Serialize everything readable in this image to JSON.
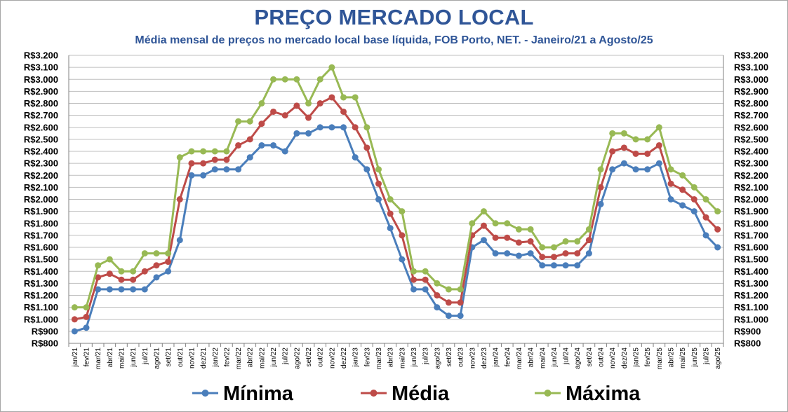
{
  "chart_data": {
    "type": "line",
    "title": "PREÇO MERCADO LOCAL",
    "subtitle": "Média mensal de preços no mercado local base líquida, FOB Porto, NET. - Janeiro/21 a Agosto/25",
    "ylim": [
      800,
      3200
    ],
    "ytick_step": 100,
    "ytick_labels": [
      "R$800",
      "R$900",
      "R$1.000",
      "R$1.100",
      "R$1.200",
      "R$1.300",
      "R$1.400",
      "R$1.500",
      "R$1.600",
      "R$1.700",
      "R$1.800",
      "R$1.900",
      "R$2.000",
      "R$2.100",
      "R$2.200",
      "R$2.300",
      "R$2.400",
      "R$2.500",
      "R$2.600",
      "R$2.700",
      "R$2.800",
      "R$2.900",
      "R$3.000",
      "R$3.100",
      "R$3.200"
    ],
    "grid": true,
    "legend_position": "bottom",
    "categories": [
      "jan/21",
      "fev/21",
      "mar/21",
      "abr/21",
      "mai/21",
      "jun/21",
      "jul/21",
      "ago/21",
      "set/21",
      "out/21",
      "nov/21",
      "dez/21",
      "jan/22",
      "fev/22",
      "mar/22",
      "abr/22",
      "mai/22",
      "jun/22",
      "jul/22",
      "ago/22",
      "set/22",
      "out/22",
      "nov/22",
      "dez/22",
      "jan/23",
      "fev/23",
      "mar/23",
      "abr/23",
      "mai/23",
      "jun/23",
      "jul/23",
      "ago/23",
      "set/23",
      "out/23",
      "nov/23",
      "dez/23",
      "jan/24",
      "fev/24",
      "mar/24",
      "abr/24",
      "mai/24",
      "jun/24",
      "jul/24",
      "ago/24",
      "set/24",
      "out/24",
      "nov/24",
      "dez/24",
      "jan/25",
      "fev/25",
      "mar/25",
      "abr/25",
      "mai/25",
      "jun/25",
      "jul/25",
      "ago/25"
    ],
    "series": [
      {
        "name": "Mínima",
        "color": "#4a7ebb",
        "values": [
          900,
          930,
          1250,
          1250,
          1250,
          1250,
          1250,
          1350,
          1400,
          1660,
          2200,
          2200,
          2250,
          2250,
          2250,
          2350,
          2450,
          2450,
          2400,
          2550,
          2550,
          2600,
          2600,
          2600,
          2350,
          2250,
          2000,
          1760,
          1500,
          1250,
          1250,
          1100,
          1030,
          1030,
          1600,
          1660,
          1550,
          1550,
          1530,
          1550,
          1450,
          1450,
          1450,
          1450,
          1550,
          1960,
          2250,
          2300,
          2250,
          2250,
          2300,
          2000,
          1950,
          1900,
          1700,
          1600
        ]
      },
      {
        "name": "Média",
        "color": "#be4b48",
        "values": [
          1000,
          1020,
          1350,
          1380,
          1330,
          1330,
          1400,
          1450,
          1480,
          2000,
          2300,
          2300,
          2330,
          2330,
          2450,
          2500,
          2630,
          2730,
          2700,
          2780,
          2680,
          2800,
          2850,
          2730,
          2600,
          2430,
          2130,
          1880,
          1700,
          1330,
          1330,
          1200,
          1140,
          1140,
          1700,
          1780,
          1680,
          1680,
          1640,
          1650,
          1520,
          1520,
          1550,
          1550,
          1660,
          2100,
          2400,
          2430,
          2380,
          2380,
          2450,
          2130,
          2080,
          2000,
          1850,
          1750
        ]
      },
      {
        "name": "Máxima",
        "color": "#98b954",
        "values": [
          1100,
          1100,
          1450,
          1500,
          1400,
          1400,
          1550,
          1550,
          1550,
          2350,
          2400,
          2400,
          2400,
          2400,
          2650,
          2650,
          2800,
          3000,
          3000,
          3000,
          2800,
          3000,
          3100,
          2850,
          2850,
          2600,
          2250,
          2000,
          1900,
          1400,
          1400,
          1300,
          1250,
          1250,
          1800,
          1900,
          1800,
          1800,
          1750,
          1750,
          1600,
          1600,
          1650,
          1650,
          1750,
          2250,
          2550,
          2550,
          2500,
          2500,
          2600,
          2250,
          2200,
          2100,
          2000,
          1900
        ]
      }
    ]
  }
}
